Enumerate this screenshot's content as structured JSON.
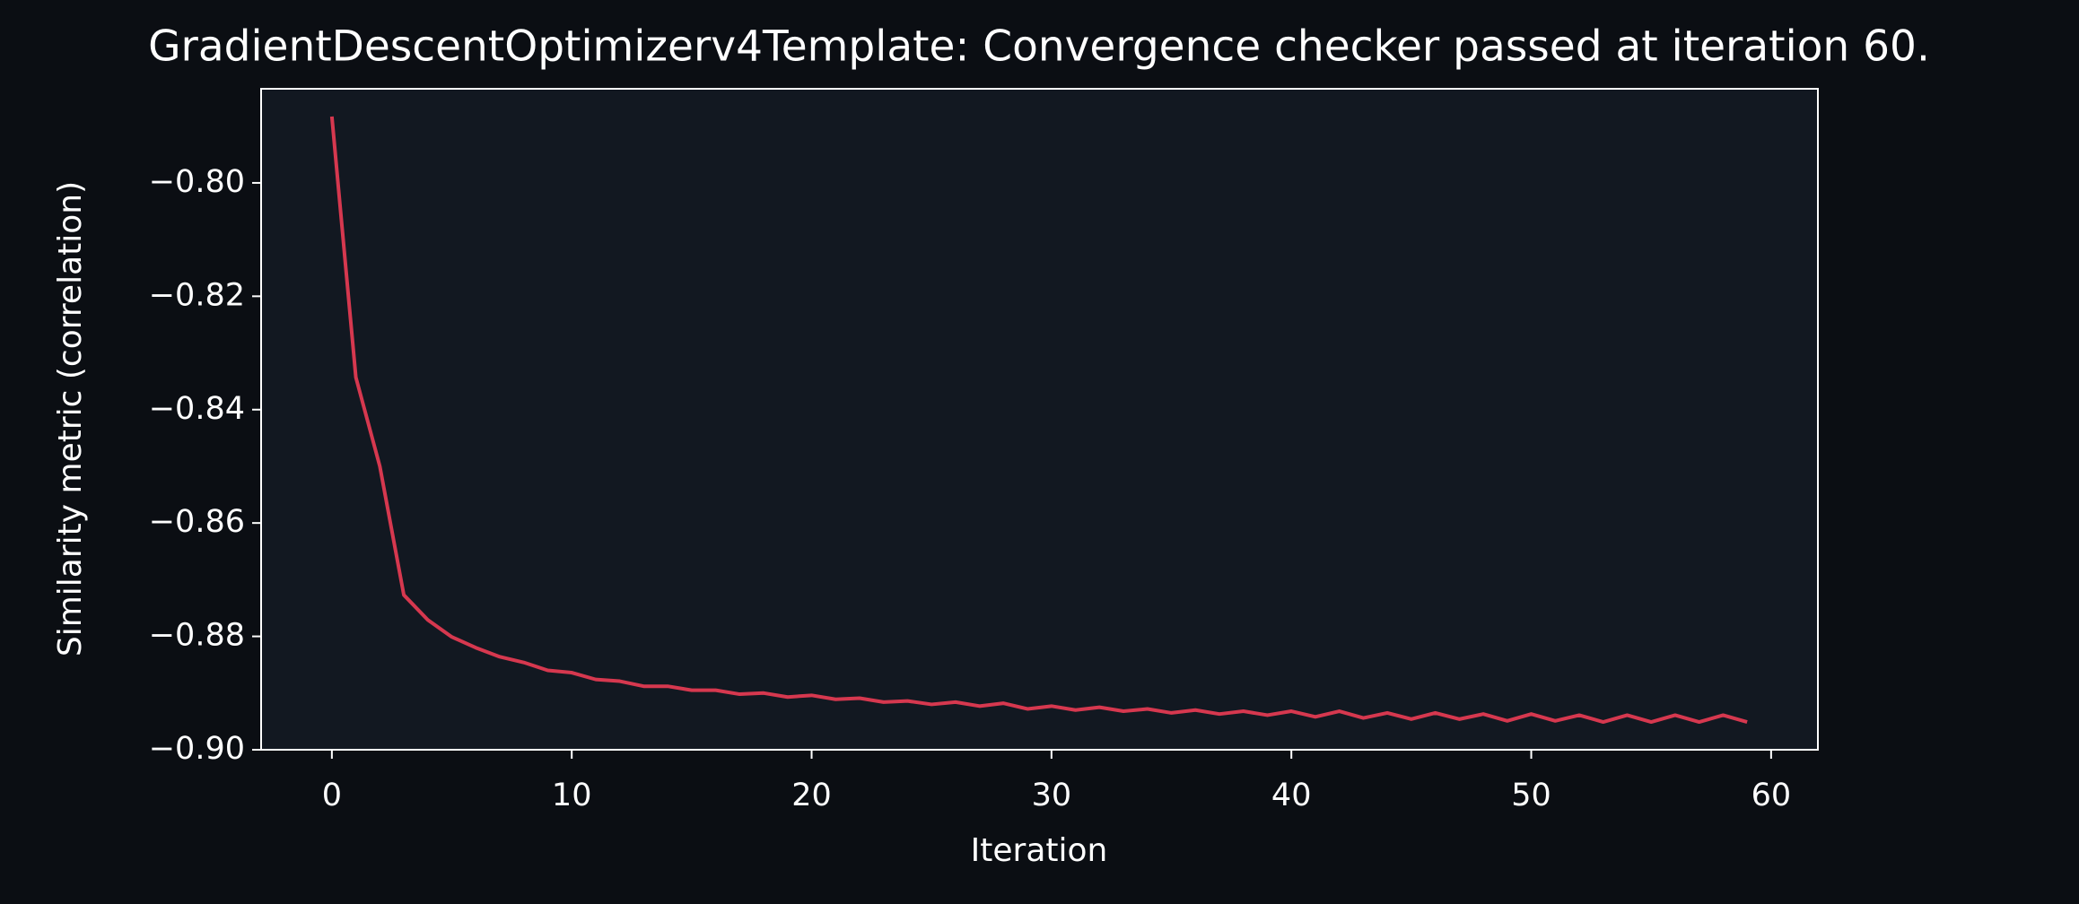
{
  "chart_data": {
    "type": "line",
    "title": "GradientDescentOptimizerv4Template: Convergence checker passed at iteration 60.",
    "x_label": "Iteration",
    "y_label": "Similarity metric (correlation)",
    "x": [
      0,
      1,
      2,
      3,
      4,
      5,
      6,
      7,
      8,
      9,
      10,
      11,
      12,
      13,
      14,
      15,
      16,
      17,
      18,
      19,
      20,
      21,
      22,
      23,
      24,
      25,
      26,
      27,
      28,
      29,
      30,
      31,
      32,
      33,
      34,
      35,
      36,
      37,
      38,
      39,
      40,
      41,
      42,
      43,
      44,
      45,
      46,
      47,
      48,
      49,
      50,
      51,
      52,
      53,
      54,
      55,
      56,
      57,
      58,
      59
    ],
    "series": [
      {
        "name": "Similarity metric",
        "color": "#d6384f",
        "values": [
          -0.7883,
          -0.8343,
          -0.85,
          -0.8727,
          -0.8771,
          -0.8801,
          -0.882,
          -0.8836,
          -0.8846,
          -0.886,
          -0.8864,
          -0.8876,
          -0.8879,
          -0.8888,
          -0.8888,
          -0.8895,
          -0.8895,
          -0.8902,
          -0.89,
          -0.8907,
          -0.8904,
          -0.8911,
          -0.8909,
          -0.8916,
          -0.8914,
          -0.892,
          -0.8916,
          -0.8923,
          -0.8918,
          -0.8928,
          -0.8923,
          -0.893,
          -0.8925,
          -0.8932,
          -0.8928,
          -0.8935,
          -0.893,
          -0.8937,
          -0.8932,
          -0.8939,
          -0.8932,
          -0.8942,
          -0.8932,
          -0.8944,
          -0.8935,
          -0.8946,
          -0.8935,
          -0.8946,
          -0.8937,
          -0.8949,
          -0.8937,
          -0.8949,
          -0.8939,
          -0.8951,
          -0.8939,
          -0.8951,
          -0.8939,
          -0.8951,
          -0.8939,
          -0.8951
        ]
      }
    ],
    "xlim": [
      -2.95,
      61.95
    ],
    "xticks": [
      0,
      10,
      20,
      30,
      40,
      50,
      60
    ],
    "ylim": [
      -0.9,
      -0.7834
    ],
    "yticks": [
      {
        "value": -0.9,
        "label": "−0.90"
      },
      {
        "value": -0.88,
        "label": "−0.88"
      },
      {
        "value": -0.86,
        "label": "−0.86"
      },
      {
        "value": -0.84,
        "label": "−0.84"
      },
      {
        "value": -0.82,
        "label": "−0.82"
      },
      {
        "value": -0.8,
        "label": "−0.80"
      }
    ],
    "grid": false
  }
}
